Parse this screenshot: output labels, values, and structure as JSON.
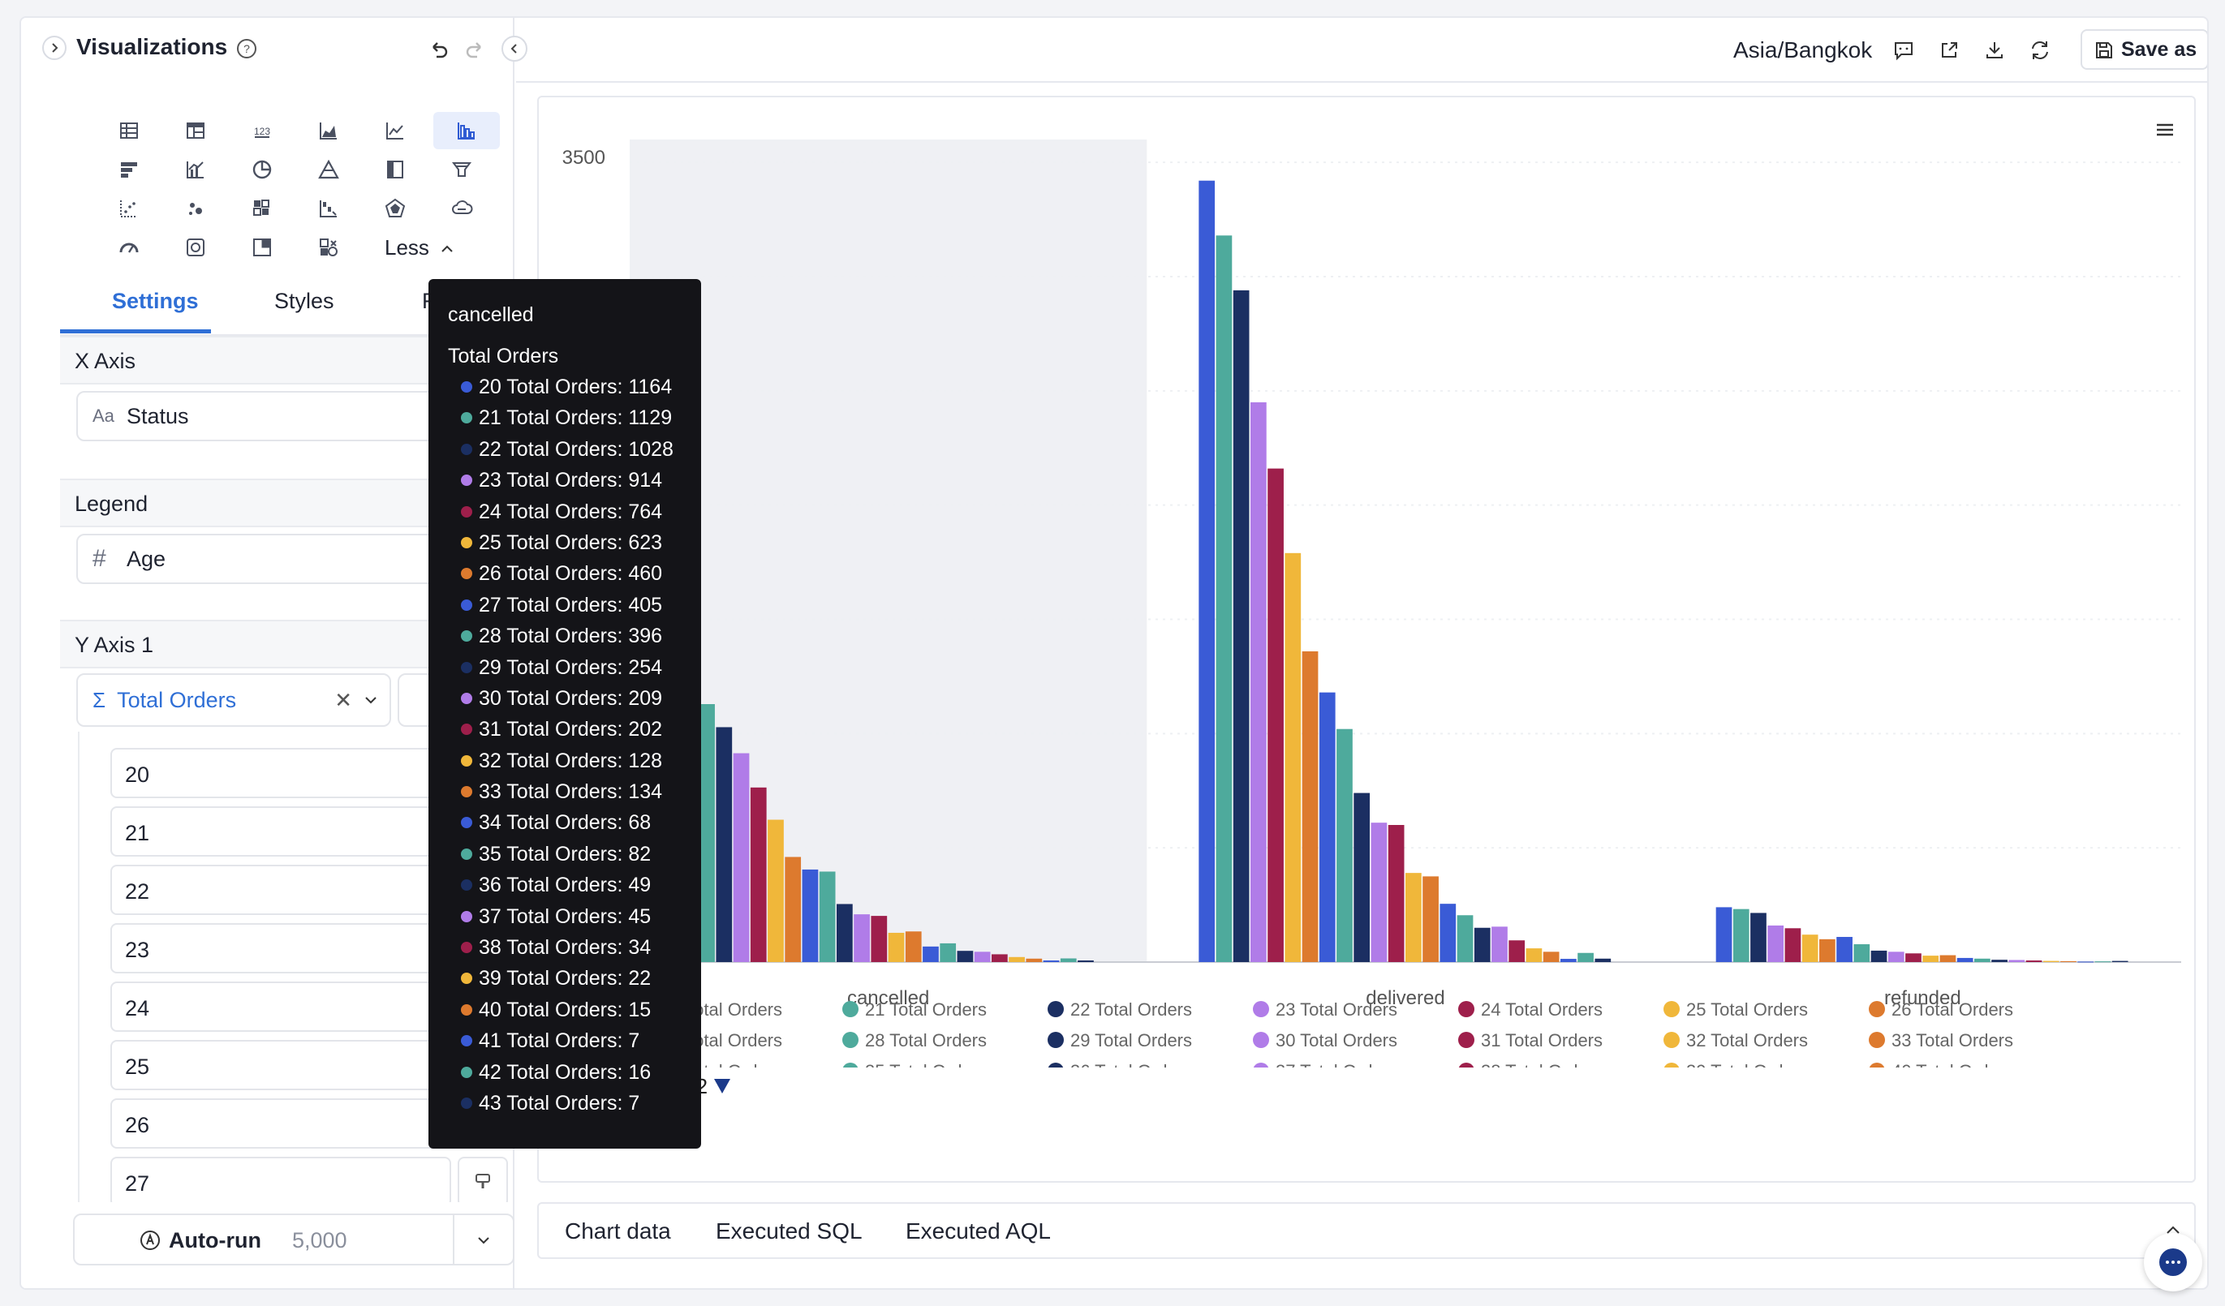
{
  "left_panel": {
    "title": "Visualizations",
    "less_label": "Less",
    "tabs": [
      {
        "label": "Settings",
        "active": true
      },
      {
        "label": "Styles",
        "active": false
      },
      {
        "label": "F",
        "active": false
      }
    ],
    "x_axis": {
      "header": "X Axis",
      "field_type": "Aa",
      "field": "Status"
    },
    "legend": {
      "header": "Legend",
      "field_type": "#",
      "field": "Age"
    },
    "y_axis": {
      "header": "Y Axis 1",
      "field": "Total Orders"
    },
    "age_items": [
      "20",
      "21",
      "22",
      "23",
      "24",
      "25",
      "26",
      "27"
    ],
    "autorun": {
      "label": "Auto-run",
      "limit": "5,000"
    }
  },
  "toolbar": {
    "timezone": "Asia/Bangkok",
    "save_label": "Save as"
  },
  "bottom_tabs": [
    "Chart data",
    "Executed SQL",
    "Executed AQL"
  ],
  "legend_pager": "1/2",
  "colors": {
    "series": [
      "#3a5bd6",
      "#4eaa9c",
      "#1b2f62",
      "#b07ce8",
      "#9e1f4b",
      "#f0b73a",
      "#dd7a2e"
    ],
    "accent": "#2f6fd6"
  },
  "tooltip": {
    "category": "cancelled",
    "measure": "Total Orders",
    "rows": [
      {
        "label": "20 Total Orders: 1164"
      },
      {
        "label": "21 Total Orders: 1129"
      },
      {
        "label": "22 Total Orders: 1028"
      },
      {
        "label": "23 Total Orders: 914"
      },
      {
        "label": "24 Total Orders: 764"
      },
      {
        "label": "25 Total Orders: 623"
      },
      {
        "label": "26 Total Orders: 460"
      },
      {
        "label": "27 Total Orders: 405"
      },
      {
        "label": "28 Total Orders: 396"
      },
      {
        "label": "29 Total Orders: 254"
      },
      {
        "label": "30 Total Orders: 209"
      },
      {
        "label": "31 Total Orders: 202"
      },
      {
        "label": "32 Total Orders: 128"
      },
      {
        "label": "33 Total Orders: 134"
      },
      {
        "label": "34 Total Orders: 68"
      },
      {
        "label": "35 Total Orders: 82"
      },
      {
        "label": "36 Total Orders: 49"
      },
      {
        "label": "37 Total Orders: 45"
      },
      {
        "label": "38 Total Orders: 34"
      },
      {
        "label": "39 Total Orders: 22"
      },
      {
        "label": "40 Total Orders: 15"
      },
      {
        "label": "41 Total Orders: 7"
      },
      {
        "label": "42 Total Orders: 16"
      },
      {
        "label": "43 Total Orders: 7"
      }
    ]
  },
  "chart_data": {
    "type": "bar",
    "categories": [
      "cancelled",
      "delivered",
      "refunded"
    ],
    "ytick_label": "3500",
    "ylim": [
      0,
      3600
    ],
    "grid": true,
    "highlighted_category": "cancelled",
    "legend_placement": "bottom",
    "series": [
      {
        "name": "20 Total Orders",
        "values": [
          1164,
          3420,
          240
        ]
      },
      {
        "name": "21 Total Orders",
        "values": [
          1129,
          3180,
          232
        ]
      },
      {
        "name": "22 Total Orders",
        "values": [
          1028,
          2940,
          215
        ]
      },
      {
        "name": "23 Total Orders",
        "values": [
          914,
          2450,
          160
        ]
      },
      {
        "name": "24 Total Orders",
        "values": [
          764,
          2160,
          148
        ]
      },
      {
        "name": "25 Total Orders",
        "values": [
          623,
          1790,
          120
        ]
      },
      {
        "name": "26 Total Orders",
        "values": [
          460,
          1360,
          100
        ]
      },
      {
        "name": "27 Total Orders",
        "values": [
          405,
          1180,
          110
        ]
      },
      {
        "name": "28 Total Orders",
        "values": [
          396,
          1020,
          78
        ]
      },
      {
        "name": "29 Total Orders",
        "values": [
          254,
          740,
          50
        ]
      },
      {
        "name": "30 Total Orders",
        "values": [
          209,
          610,
          45
        ]
      },
      {
        "name": "31 Total Orders",
        "values": [
          202,
          600,
          38
        ]
      },
      {
        "name": "32 Total Orders",
        "values": [
          128,
          390,
          28
        ]
      },
      {
        "name": "33 Total Orders",
        "values": [
          134,
          375,
          30
        ]
      },
      {
        "name": "34 Total Orders",
        "values": [
          68,
          255,
          18
        ]
      },
      {
        "name": "35 Total Orders",
        "values": [
          82,
          205,
          15
        ]
      },
      {
        "name": "36 Total Orders",
        "values": [
          49,
          150,
          10
        ]
      },
      {
        "name": "37 Total Orders",
        "values": [
          45,
          155,
          9
        ]
      },
      {
        "name": "38 Total Orders",
        "values": [
          34,
          95,
          7
        ]
      },
      {
        "name": "39 Total Orders",
        "values": [
          22,
          60,
          5
        ]
      },
      {
        "name": "40 Total Orders",
        "values": [
          15,
          45,
          4
        ]
      },
      {
        "name": "41 Total Orders",
        "values": [
          7,
          14,
          2
        ]
      },
      {
        "name": "42 Total Orders",
        "values": [
          16,
          40,
          3
        ]
      },
      {
        "name": "43 Total Orders",
        "values": [
          7,
          15,
          5
        ]
      }
    ]
  }
}
